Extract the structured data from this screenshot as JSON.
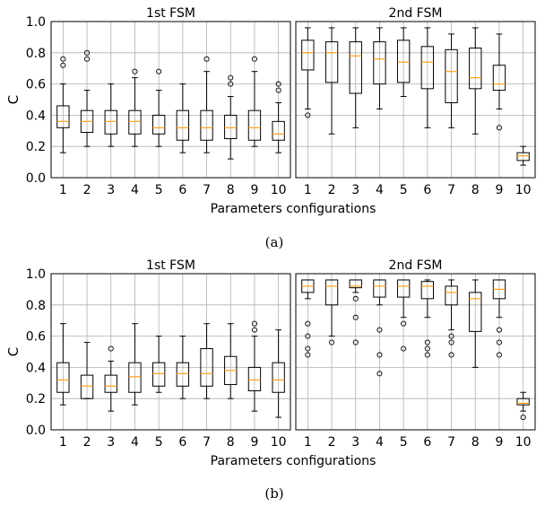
{
  "figure": {
    "captions": [
      "(a)",
      "(b)"
    ]
  },
  "chart_data": [
    {
      "type": "box",
      "caption": "(a)",
      "ylabel": "C",
      "xlabel": "Parameters configurations",
      "ylim": [
        0.0,
        1.0
      ],
      "yticks": [
        0.0,
        0.2,
        0.4,
        0.6,
        0.8,
        1.0
      ],
      "grid": true,
      "median_color": "#ff9f1c",
      "panels": [
        {
          "title": "1st FSM",
          "categories": [
            "1",
            "2",
            "3",
            "4",
            "5",
            "6",
            "7",
            "8",
            "9",
            "10"
          ],
          "boxes": [
            {
              "q1": 0.32,
              "median": 0.36,
              "q3": 0.46,
              "whislo": 0.16,
              "whishi": 0.6,
              "fliers": [
                0.72,
                0.76
              ]
            },
            {
              "q1": 0.29,
              "median": 0.36,
              "q3": 0.43,
              "whislo": 0.2,
              "whishi": 0.56,
              "fliers": [
                0.76,
                0.8
              ]
            },
            {
              "q1": 0.28,
              "median": 0.36,
              "q3": 0.43,
              "whislo": 0.2,
              "whishi": 0.6,
              "fliers": []
            },
            {
              "q1": 0.28,
              "median": 0.36,
              "q3": 0.43,
              "whislo": 0.2,
              "whishi": 0.64,
              "fliers": [
                0.68
              ]
            },
            {
              "q1": 0.28,
              "median": 0.32,
              "q3": 0.4,
              "whislo": 0.2,
              "whishi": 0.56,
              "fliers": [
                0.68
              ]
            },
            {
              "q1": 0.24,
              "median": 0.32,
              "q3": 0.43,
              "whislo": 0.16,
              "whishi": 0.6,
              "fliers": []
            },
            {
              "q1": 0.24,
              "median": 0.32,
              "q3": 0.43,
              "whislo": 0.16,
              "whishi": 0.68,
              "fliers": [
                0.76
              ]
            },
            {
              "q1": 0.25,
              "median": 0.32,
              "q3": 0.4,
              "whislo": 0.12,
              "whishi": 0.52,
              "fliers": [
                0.6,
                0.64
              ]
            },
            {
              "q1": 0.24,
              "median": 0.32,
              "q3": 0.43,
              "whislo": 0.2,
              "whishi": 0.68,
              "fliers": [
                0.76
              ]
            },
            {
              "q1": 0.24,
              "median": 0.28,
              "q3": 0.36,
              "whislo": 0.16,
              "whishi": 0.48,
              "fliers": [
                0.56,
                0.6
              ]
            }
          ]
        },
        {
          "title": "2nd FSM",
          "categories": [
            "1",
            "2",
            "3",
            "4",
            "5",
            "6",
            "7",
            "8",
            "9",
            "10"
          ],
          "boxes": [
            {
              "q1": 0.69,
              "median": 0.8,
              "q3": 0.88,
              "whislo": 0.44,
              "whishi": 0.96,
              "fliers": [
                0.4
              ]
            },
            {
              "q1": 0.61,
              "median": 0.8,
              "q3": 0.87,
              "whislo": 0.28,
              "whishi": 0.96,
              "fliers": []
            },
            {
              "q1": 0.54,
              "median": 0.78,
              "q3": 0.87,
              "whislo": 0.32,
              "whishi": 0.96,
              "fliers": []
            },
            {
              "q1": 0.6,
              "median": 0.76,
              "q3": 0.87,
              "whislo": 0.44,
              "whishi": 0.96,
              "fliers": []
            },
            {
              "q1": 0.61,
              "median": 0.74,
              "q3": 0.88,
              "whislo": 0.52,
              "whishi": 0.96,
              "fliers": []
            },
            {
              "q1": 0.57,
              "median": 0.74,
              "q3": 0.84,
              "whislo": 0.32,
              "whishi": 0.96,
              "fliers": []
            },
            {
              "q1": 0.48,
              "median": 0.68,
              "q3": 0.82,
              "whislo": 0.32,
              "whishi": 0.92,
              "fliers": []
            },
            {
              "q1": 0.57,
              "median": 0.64,
              "q3": 0.83,
              "whislo": 0.28,
              "whishi": 0.96,
              "fliers": []
            },
            {
              "q1": 0.56,
              "median": 0.6,
              "q3": 0.72,
              "whislo": 0.44,
              "whishi": 0.92,
              "fliers": [
                0.32
              ]
            },
            {
              "q1": 0.11,
              "median": 0.14,
              "q3": 0.16,
              "whislo": 0.08,
              "whishi": 0.2,
              "fliers": []
            }
          ]
        }
      ]
    },
    {
      "type": "box",
      "caption": "(b)",
      "ylabel": "C",
      "xlabel": "Parameters configurations",
      "ylim": [
        0.0,
        1.0
      ],
      "yticks": [
        0.0,
        0.2,
        0.4,
        0.6,
        0.8,
        1.0
      ],
      "grid": true,
      "median_color": "#ff9f1c",
      "panels": [
        {
          "title": "1st FSM",
          "categories": [
            "1",
            "2",
            "3",
            "4",
            "5",
            "6",
            "7",
            "8",
            "9",
            "10"
          ],
          "boxes": [
            {
              "q1": 0.24,
              "median": 0.32,
              "q3": 0.43,
              "whislo": 0.16,
              "whishi": 0.68,
              "fliers": []
            },
            {
              "q1": 0.2,
              "median": 0.28,
              "q3": 0.35,
              "whislo": 0.2,
              "whishi": 0.56,
              "fliers": []
            },
            {
              "q1": 0.24,
              "median": 0.28,
              "q3": 0.35,
              "whislo": 0.12,
              "whishi": 0.44,
              "fliers": [
                0.52
              ]
            },
            {
              "q1": 0.24,
              "median": 0.34,
              "q3": 0.43,
              "whislo": 0.16,
              "whishi": 0.68,
              "fliers": []
            },
            {
              "q1": 0.28,
              "median": 0.36,
              "q3": 0.43,
              "whislo": 0.24,
              "whishi": 0.6,
              "fliers": []
            },
            {
              "q1": 0.28,
              "median": 0.36,
              "q3": 0.43,
              "whislo": 0.2,
              "whishi": 0.6,
              "fliers": []
            },
            {
              "q1": 0.28,
              "median": 0.36,
              "q3": 0.52,
              "whislo": 0.2,
              "whishi": 0.68,
              "fliers": []
            },
            {
              "q1": 0.29,
              "median": 0.38,
              "q3": 0.47,
              "whislo": 0.2,
              "whishi": 0.68,
              "fliers": []
            },
            {
              "q1": 0.25,
              "median": 0.32,
              "q3": 0.4,
              "whislo": 0.12,
              "whishi": 0.6,
              "fliers": [
                0.64,
                0.68
              ]
            },
            {
              "q1": 0.24,
              "median": 0.32,
              "q3": 0.43,
              "whislo": 0.08,
              "whishi": 0.64,
              "fliers": []
            }
          ]
        },
        {
          "title": "2nd FSM",
          "categories": [
            "1",
            "2",
            "3",
            "4",
            "5",
            "6",
            "7",
            "8",
            "9",
            "10"
          ],
          "boxes": [
            {
              "q1": 0.88,
              "median": 0.92,
              "q3": 0.96,
              "whislo": 0.84,
              "whishi": 0.96,
              "fliers": [
                0.68,
                0.6,
                0.52,
                0.48
              ]
            },
            {
              "q1": 0.8,
              "median": 0.92,
              "q3": 0.96,
              "whislo": 0.6,
              "whishi": 0.96,
              "fliers": [
                0.56
              ]
            },
            {
              "q1": 0.91,
              "median": 0.92,
              "q3": 0.96,
              "whislo": 0.88,
              "whishi": 0.96,
              "fliers": [
                0.84,
                0.72,
                0.56
              ]
            },
            {
              "q1": 0.85,
              "median": 0.92,
              "q3": 0.96,
              "whislo": 0.8,
              "whishi": 0.96,
              "fliers": [
                0.64,
                0.48,
                0.36
              ]
            },
            {
              "q1": 0.85,
              "median": 0.92,
              "q3": 0.96,
              "whislo": 0.72,
              "whishi": 0.96,
              "fliers": [
                0.68,
                0.52
              ]
            },
            {
              "q1": 0.84,
              "median": 0.92,
              "q3": 0.95,
              "whislo": 0.72,
              "whishi": 0.96,
              "fliers": [
                0.56,
                0.52,
                0.48
              ]
            },
            {
              "q1": 0.8,
              "median": 0.88,
              "q3": 0.92,
              "whislo": 0.64,
              "whishi": 0.96,
              "fliers": [
                0.6,
                0.56,
                0.48
              ]
            },
            {
              "q1": 0.63,
              "median": 0.84,
              "q3": 0.88,
              "whislo": 0.4,
              "whishi": 0.96,
              "fliers": []
            },
            {
              "q1": 0.84,
              "median": 0.9,
              "q3": 0.96,
              "whislo": 0.72,
              "whishi": 0.96,
              "fliers": [
                0.64,
                0.56,
                0.48
              ]
            },
            {
              "q1": 0.16,
              "median": 0.17,
              "q3": 0.2,
              "whislo": 0.12,
              "whishi": 0.24,
              "fliers": [
                0.08
              ]
            }
          ]
        }
      ]
    }
  ]
}
